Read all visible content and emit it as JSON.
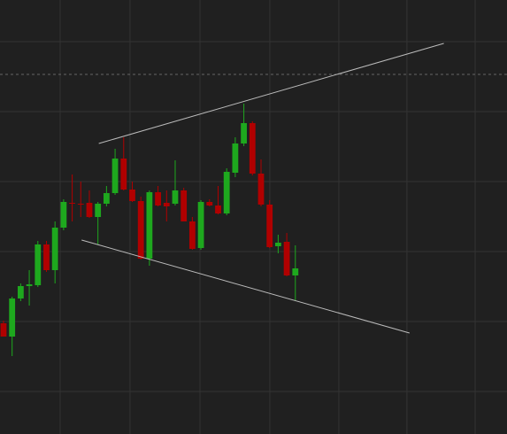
{
  "chart_data": {
    "type": "candlestick",
    "x": [
      0,
      1,
      2,
      3,
      4,
      5,
      6,
      7,
      8,
      9,
      10,
      11,
      12,
      13,
      14,
      15,
      16,
      17,
      18,
      19,
      20,
      21,
      22,
      23,
      24,
      25,
      26,
      27,
      28,
      29,
      30,
      31,
      32,
      33,
      34
    ],
    "open": [
      125,
      110,
      153,
      167,
      168,
      214,
      185,
      233,
      261,
      260,
      261,
      245,
      260,
      272,
      311,
      276,
      263,
      198,
      273,
      261,
      260,
      275,
      240,
      210,
      262,
      258,
      249,
      295,
      328,
      351,
      294,
      259,
      212,
      217,
      179
    ],
    "high": [
      128,
      155,
      170,
      185,
      218,
      218,
      240,
      265,
      293,
      285,
      275,
      262,
      280,
      322,
      335,
      285,
      268,
      275,
      280,
      275,
      309,
      278,
      245,
      264,
      265,
      280,
      300,
      335,
      373,
      353,
      310,
      264,
      225,
      227,
      213
    ],
    "low": [
      110,
      88,
      150,
      145,
      166,
      183,
      170,
      230,
      240,
      245,
      244,
      214,
      257,
      270,
      275,
      262,
      197,
      190,
      257,
      240,
      258,
      240,
      208,
      208,
      257,
      248,
      247,
      290,
      325,
      292,
      257,
      210,
      204,
      178,
      150
    ],
    "close": [
      110,
      153,
      167,
      169,
      214,
      185,
      233,
      262,
      260,
      259,
      245,
      260,
      272,
      311,
      276,
      263,
      198,
      273,
      258,
      257,
      275,
      240,
      209,
      262,
      258,
      249,
      296,
      328,
      351,
      294,
      259,
      211,
      216,
      179,
      187
    ],
    "up_color": "#1ea81e",
    "down_color": "#b00000",
    "xlim": [
      -0.41,
      58.66
    ],
    "ylim": [
      0,
      490
    ],
    "xticks": [
      6.6,
      14.74,
      22.89,
      31.03,
      39.07,
      47.0,
      54.95
    ],
    "yticks": [
      48,
      127,
      206,
      285,
      364,
      443
    ],
    "grid": true,
    "hline": 406,
    "trendlines": [
      {
        "x": [
          11.1,
          51.3
        ],
        "y": [
          328,
          441
        ]
      },
      {
        "x": [
          9.1,
          47.3
        ],
        "y": [
          219,
          114
        ]
      }
    ]
  }
}
